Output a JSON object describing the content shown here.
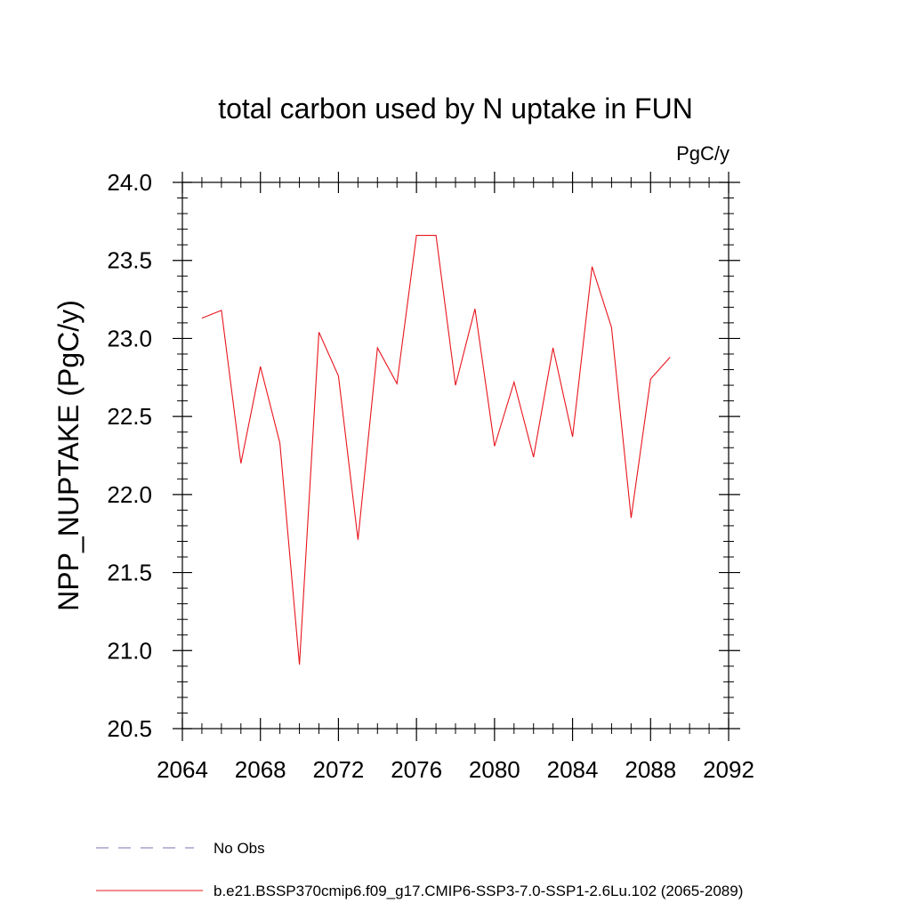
{
  "chart_data": {
    "type": "line",
    "title": "total carbon used by N uptake in FUN",
    "units_label": "PgC/y",
    "ylabel": "NPP_NUPTAKE  (PgC/y)",
    "xlabel": "",
    "xlim": [
      2064,
      2092
    ],
    "ylim": [
      20.5,
      24.0
    ],
    "x_ticks": [
      2064,
      2068,
      2072,
      2076,
      2080,
      2084,
      2088,
      2092
    ],
    "y_ticks": [
      20.5,
      21.0,
      21.5,
      22.0,
      22.5,
      23.0,
      23.5,
      24.0
    ],
    "x_tick_labels": [
      "2064",
      "2068",
      "2072",
      "2076",
      "2080",
      "2084",
      "2088",
      "2092"
    ],
    "y_tick_labels": [
      "20.5",
      "21.0",
      "21.5",
      "22.0",
      "22.5",
      "23.0",
      "23.5",
      "24.0"
    ],
    "grid": false,
    "legend_position": "bottom-left",
    "legend": [
      {
        "label": "No Obs",
        "color": "#7b6fb0",
        "style": "dashed"
      },
      {
        "label": "b.e21.BSSP370cmip6.f09_g17.CMIP6-SSP3-7.0-SSP1-2.6Lu.102 (2065-2089)",
        "color": "#e8141c",
        "style": "solid"
      }
    ],
    "series": [
      {
        "color": "#e8141c",
        "x": [
          2065,
          2066,
          2067,
          2068,
          2069,
          2070,
          2071,
          2072,
          2073,
          2074,
          2075,
          2076,
          2077,
          2078,
          2079,
          2080,
          2081,
          2082,
          2083,
          2084,
          2085,
          2086,
          2087,
          2088,
          2089
        ],
        "y": [
          23.13,
          23.18,
          22.2,
          22.82,
          22.33,
          20.91,
          23.04,
          22.76,
          21.71,
          22.94,
          22.71,
          23.66,
          23.66,
          22.7,
          23.19,
          22.31,
          22.72,
          22.24,
          22.94,
          22.37,
          23.46,
          23.07,
          21.85,
          22.74,
          22.88
        ]
      }
    ]
  }
}
